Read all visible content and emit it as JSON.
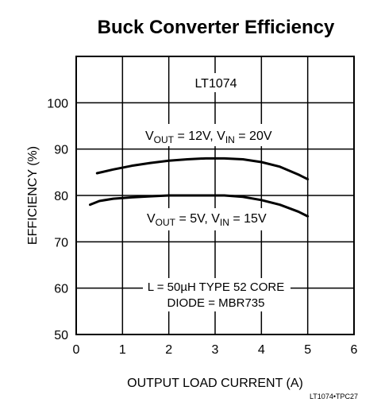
{
  "chart_data": {
    "type": "line",
    "title": "Buck Converter Efficiency",
    "xlabel": "OUTPUT LOAD CURRENT (A)",
    "ylabel": "EFFICIENCY (%)",
    "xlim": [
      0,
      6
    ],
    "ylim": [
      50,
      110
    ],
    "xticks": [
      0,
      1,
      2,
      3,
      4,
      5,
      6
    ],
    "yticks": [
      50,
      60,
      70,
      80,
      90,
      100
    ],
    "grid": true,
    "device_label": "LT1074",
    "series": [
      {
        "label_main": "V",
        "label_sub1": "OUT",
        "label_mid": " = 12V, V",
        "label_sub2": "IN",
        "label_end": " = 20V",
        "x": [
          0.45,
          0.8,
          1.2,
          1.6,
          2.0,
          2.4,
          2.8,
          3.2,
          3.6,
          4.0,
          4.4,
          4.8,
          5.0
        ],
        "y": [
          84.8,
          85.6,
          86.4,
          87.0,
          87.5,
          87.8,
          88.0,
          88.0,
          87.8,
          87.2,
          86.2,
          84.5,
          83.5
        ]
      },
      {
        "label_main": "V",
        "label_sub1": "OUT",
        "label_mid": " = 5V, V",
        "label_sub2": "IN",
        "label_end": " = 15V",
        "x": [
          0.3,
          0.5,
          0.8,
          1.2,
          1.6,
          2.0,
          2.4,
          2.8,
          3.2,
          3.6,
          4.0,
          4.4,
          4.8,
          5.0
        ],
        "y": [
          78.0,
          78.8,
          79.3,
          79.6,
          79.8,
          80.0,
          80.0,
          80.0,
          80.0,
          79.7,
          79.0,
          78.0,
          76.5,
          75.5
        ]
      }
    ],
    "notes": [
      "L = 50µH TYPE 52 CORE",
      "DIODE = MBR735"
    ],
    "figure_code": "LT1074•TPC27"
  }
}
